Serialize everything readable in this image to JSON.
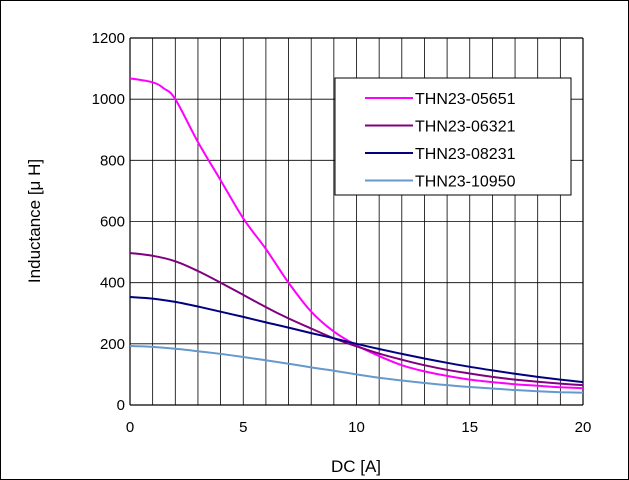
{
  "chart_data": {
    "type": "line",
    "xlabel": "DC [A]",
    "ylabel": "Inductance [μ H]",
    "xlim": [
      0,
      20
    ],
    "ylim": [
      0,
      1200
    ],
    "x_ticks": [
      "0",
      "5",
      "10",
      "15",
      "20"
    ],
    "y_ticks": [
      "0",
      "200",
      "400",
      "600",
      "800",
      "1000",
      "1200"
    ],
    "grid": "vertical every 1 A, horizontal every 200 μH",
    "legend_position": "top-right",
    "series": [
      {
        "name": "THN23-05651",
        "color": "#ff00ff",
        "points": [
          [
            0,
            1068
          ],
          [
            1,
            1055
          ],
          [
            1.5,
            1035
          ],
          [
            2,
            1000
          ],
          [
            3,
            860
          ],
          [
            4,
            735
          ],
          [
            5,
            610
          ],
          [
            6,
            510
          ],
          [
            7,
            400
          ],
          [
            8,
            305
          ],
          [
            9,
            240
          ],
          [
            10,
            195
          ],
          [
            11,
            160
          ],
          [
            12,
            130
          ],
          [
            13,
            110
          ],
          [
            14,
            95
          ],
          [
            15,
            83
          ],
          [
            16,
            75
          ],
          [
            17,
            68
          ],
          [
            18,
            63
          ],
          [
            19,
            58
          ],
          [
            20,
            55
          ]
        ]
      },
      {
        "name": "THN23-06321",
        "color": "#800080",
        "points": [
          [
            0,
            497
          ],
          [
            1,
            488
          ],
          [
            2,
            470
          ],
          [
            3,
            438
          ],
          [
            4,
            400
          ],
          [
            5,
            360
          ],
          [
            6,
            320
          ],
          [
            7,
            283
          ],
          [
            8,
            250
          ],
          [
            9,
            218
          ],
          [
            10,
            192
          ],
          [
            11,
            168
          ],
          [
            12,
            148
          ],
          [
            13,
            130
          ],
          [
            14,
            115
          ],
          [
            15,
            103
          ],
          [
            16,
            92
          ],
          [
            17,
            83
          ],
          [
            18,
            76
          ],
          [
            19,
            70
          ],
          [
            20,
            65
          ]
        ]
      },
      {
        "name": "THN23-08231",
        "color": "#000080",
        "points": [
          [
            0,
            353
          ],
          [
            1,
            348
          ],
          [
            2,
            337
          ],
          [
            3,
            322
          ],
          [
            4,
            305
          ],
          [
            5,
            288
          ],
          [
            6,
            270
          ],
          [
            7,
            253
          ],
          [
            8,
            235
          ],
          [
            9,
            218
          ],
          [
            10,
            200
          ],
          [
            11,
            183
          ],
          [
            12,
            167
          ],
          [
            13,
            152
          ],
          [
            14,
            138
          ],
          [
            15,
            125
          ],
          [
            16,
            113
          ],
          [
            17,
            102
          ],
          [
            18,
            92
          ],
          [
            19,
            83
          ],
          [
            20,
            75
          ]
        ]
      },
      {
        "name": "THN23-10950",
        "color": "#6699cc",
        "points": [
          [
            0,
            193
          ],
          [
            1,
            190
          ],
          [
            2,
            184
          ],
          [
            3,
            176
          ],
          [
            4,
            167
          ],
          [
            5,
            157
          ],
          [
            6,
            146
          ],
          [
            7,
            135
          ],
          [
            8,
            123
          ],
          [
            9,
            112
          ],
          [
            10,
            100
          ],
          [
            11,
            89
          ],
          [
            12,
            80
          ],
          [
            13,
            72
          ],
          [
            14,
            65
          ],
          [
            15,
            59
          ],
          [
            16,
            54
          ],
          [
            17,
            49
          ],
          [
            18,
            45
          ],
          [
            19,
            42
          ],
          [
            20,
            40
          ]
        ]
      }
    ]
  }
}
